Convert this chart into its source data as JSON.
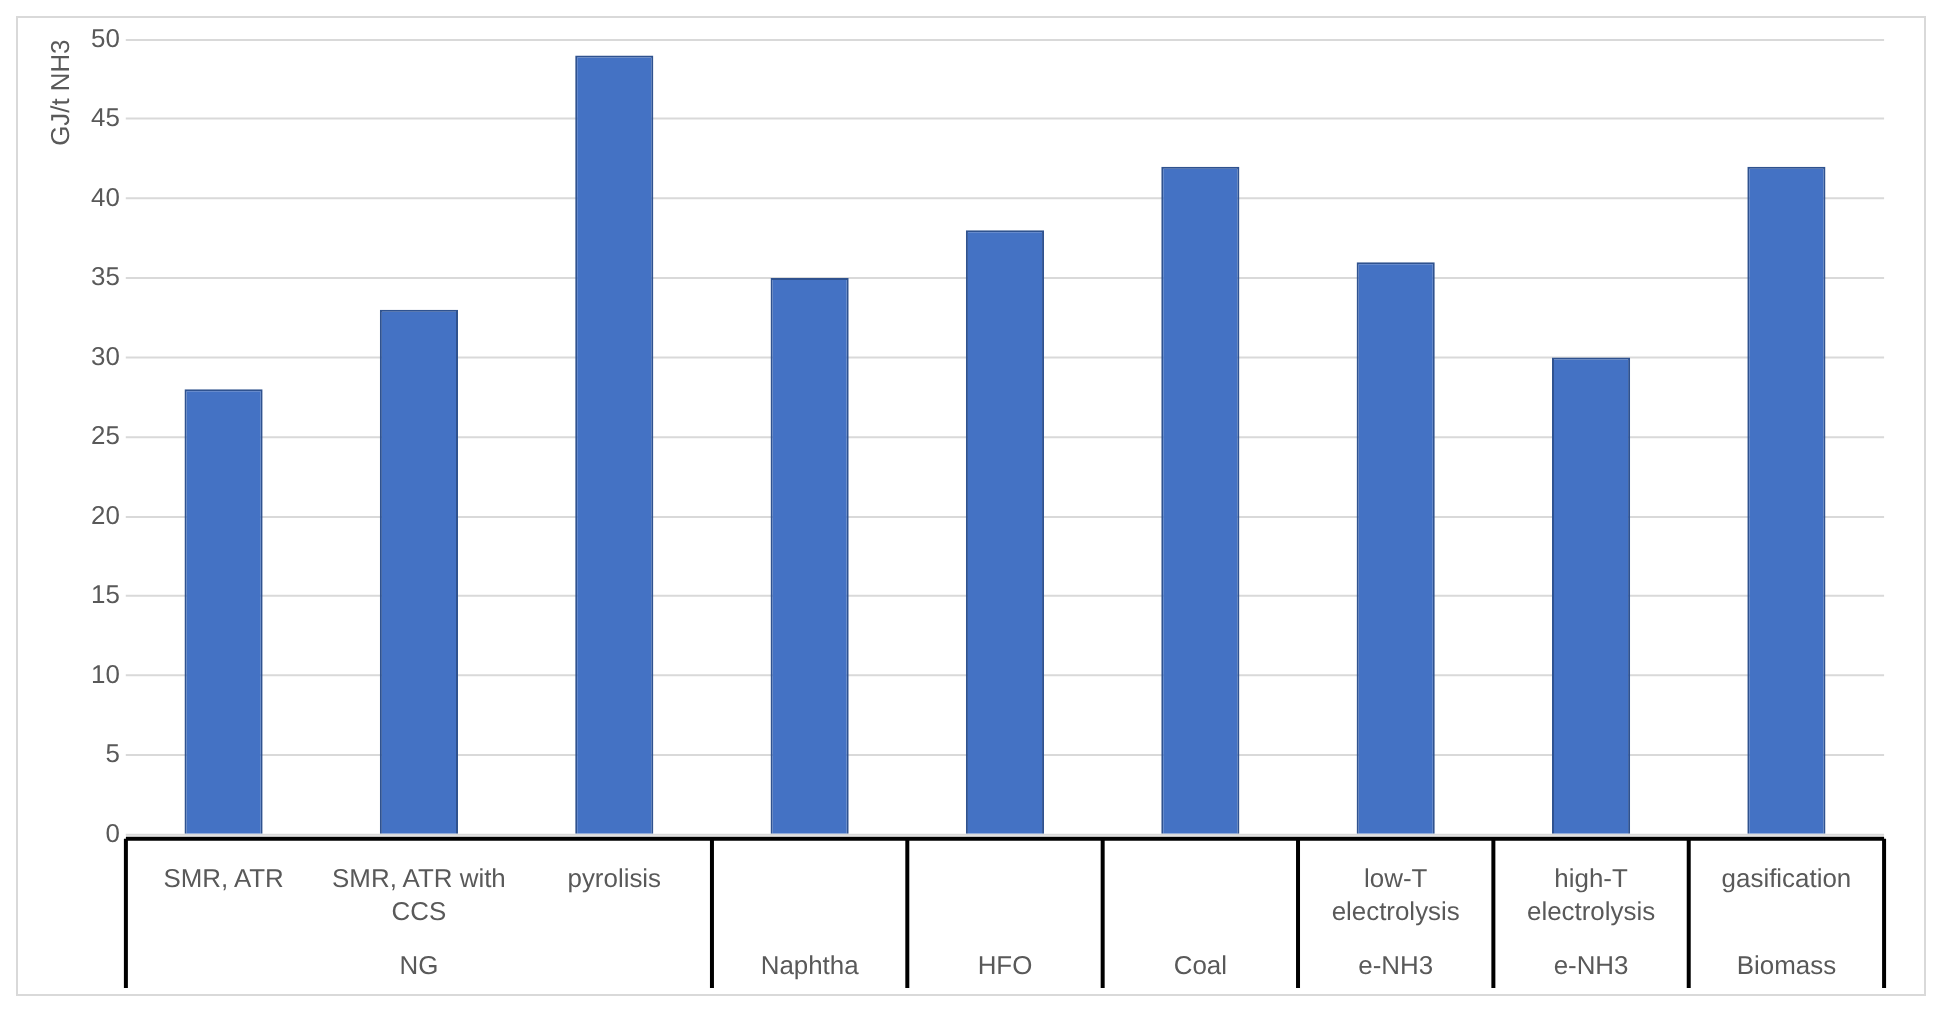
{
  "chart_data": {
    "type": "bar",
    "ylabel": "GJ/t NH3",
    "categories": [
      "SMR, ATR",
      "SMR, ATR with CCS",
      "pyrolisis",
      null,
      null,
      null,
      "low-T electrolysis",
      "high-T electrolysis",
      "gasification"
    ],
    "annotations": [
      "NG",
      "Naphtha",
      "HFO",
      "Coal",
      "e-NH3",
      "e-NH3",
      "Biomass"
    ],
    "values": [
      28,
      33,
      49,
      35,
      38,
      42,
      36,
      30,
      42
    ],
    "color": "#4472c4",
    "ylim": [
      0,
      50
    ],
    "yticks": [
      0,
      5,
      10,
      15,
      20,
      25,
      30,
      35,
      40,
      45,
      50
    ],
    "grid": "y",
    "legend": false
  }
}
